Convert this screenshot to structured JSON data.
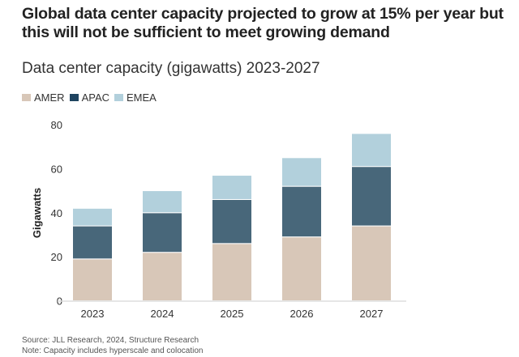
{
  "title": "Global data center capacity projected to grow at 15% per year but this will not be sufficient to meet growing demand",
  "subtitle": "Data center capacity (gigawatts) 2023-2027",
  "source": "Source: JLL Research, 2024, Structure Research",
  "note": "Note: Capacity includes hyperscale and colocation",
  "chart_data": {
    "type": "bar",
    "stacked": true,
    "categories": [
      "2023",
      "2024",
      "2025",
      "2026",
      "2027"
    ],
    "series": [
      {
        "name": "AMER",
        "values": [
          19,
          22,
          26,
          29,
          34
        ],
        "color": "#d8c7b8"
      },
      {
        "name": "APAC",
        "values": [
          15,
          18,
          20,
          23,
          27
        ],
        "color": "#48677a",
        "legend_color": "#1f4460"
      },
      {
        "name": "EMEA",
        "values": [
          8,
          10,
          11,
          13,
          15
        ],
        "color": "#b2d0dc"
      }
    ],
    "ylabel": "Gigawatts",
    "xlabel": "",
    "ylim": [
      0,
      80
    ],
    "yticks": [
      "0",
      "20",
      "40",
      "60",
      "80"
    ],
    "grid": false,
    "legend": "top-left"
  }
}
